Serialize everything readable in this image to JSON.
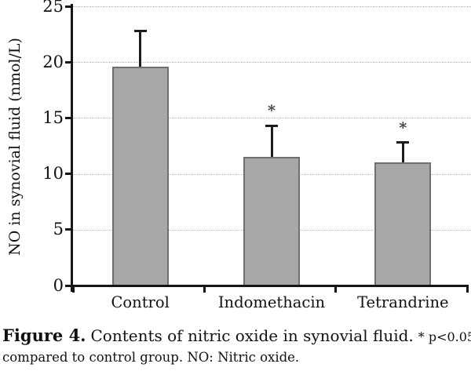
{
  "chart_data": {
    "type": "bar",
    "title": "",
    "categories": [
      "Control",
      "Indomethacin",
      "Tetrandrine"
    ],
    "values": [
      19.6,
      11.5,
      11.0
    ],
    "errors_plus": [
      3.2,
      2.8,
      1.8
    ],
    "sig_markers": [
      "",
      "*",
      "*"
    ],
    "xlabel": "",
    "ylabel": "NO in synovial fluid (nmol/L)",
    "ylim": [
      0,
      25
    ],
    "yticks": [
      0,
      5,
      10,
      15,
      20,
      25
    ],
    "grid": "horizontal dotted lines at each y tick",
    "legend": "none",
    "colors": {
      "bar_fill": "#a8a8a8",
      "bar_border": "#6f6f6f",
      "axis": "#161616",
      "grid": "#b5b5b5",
      "error_bar": "#1c1c1c",
      "text": "#111111"
    }
  },
  "caption": {
    "figure_label": "Figure 4.",
    "title_text": "Contents of nitric oxide in synovial fluid.",
    "sig_note": "* p<0.05",
    "line2": "compared to control group.  NO: Nitric oxide."
  }
}
